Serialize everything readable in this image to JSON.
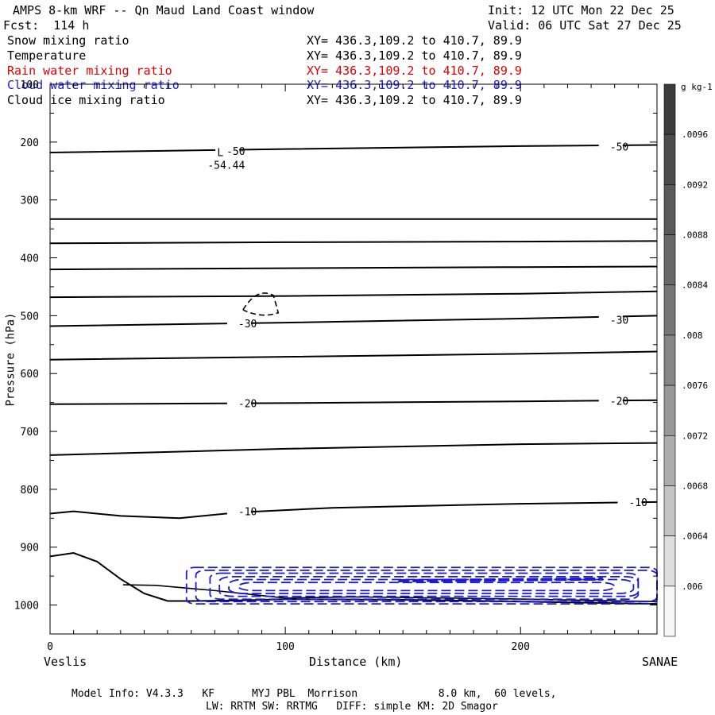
{
  "header": {
    "title": "AMPS 8-km WRF -- Qn Maud Land Coast window",
    "forecast": "Fcst:  114 h",
    "init": "Init: 12 UTC Mon 22 Dec 25",
    "valid": "Valid: 06 UTC Sat 27 Dec 25"
  },
  "fields": [
    {
      "name": "Snow mixing ratio",
      "xy": "XY= 436.3,109.2 to 410.7, 89.9",
      "color": "#000000"
    },
    {
      "name": "Temperature",
      "xy": "XY= 436.3,109.2 to 410.7, 89.9",
      "color": "#000000"
    },
    {
      "name": "Rain water mixing ratio",
      "xy": "XY= 436.3,109.2 to 410.7, 89.9",
      "color": "#e00000"
    },
    {
      "name": "Cloud water mixing ratio",
      "xy": "XY= 436.3,109.2 to 410.7, 89.9",
      "color": "#1a1ad8"
    },
    {
      "name": "Cloud ice mixing ratio",
      "xy": "XY= 436.3,109.2 to 410.7, 89.9",
      "color": "#000000"
    }
  ],
  "chart_data": {
    "type": "cross-section contour",
    "xlabel": "Distance (km)",
    "ylabel": "Pressure (hPa)",
    "xlim": [
      0,
      258
    ],
    "ylim": [
      1050,
      100
    ],
    "xticks": [
      0,
      100,
      200
    ],
    "yticks": [
      100,
      200,
      300,
      400,
      500,
      600,
      700,
      800,
      900,
      1000
    ],
    "endpoints": {
      "left": "Veslis",
      "right": "SANAE"
    },
    "temperature_contours": [
      {
        "x": [
          0,
          100,
          200,
          258
        ],
        "p": [
          218,
          212,
          207,
          205
        ]
      },
      {
        "x": [
          0,
          258
        ],
        "p": [
          333,
          333
        ]
      },
      {
        "x": [
          0,
          100,
          200,
          258
        ],
        "p": [
          375,
          373,
          372,
          371
        ]
      },
      {
        "x": [
          0,
          100,
          200,
          258
        ],
        "p": [
          420,
          418,
          416,
          415
        ]
      },
      {
        "x": [
          0,
          100,
          200,
          258
        ],
        "p": [
          468,
          466,
          462,
          458
        ]
      },
      {
        "x": [
          0,
          100,
          200,
          258
        ],
        "p": [
          518,
          512,
          505,
          500
        ]
      },
      {
        "x": [
          0,
          100,
          200,
          258
        ],
        "p": [
          576,
          571,
          566,
          562
        ]
      },
      {
        "x": [
          0,
          100,
          200,
          258
        ],
        "p": [
          653,
          651,
          648,
          646
        ]
      },
      {
        "x": [
          0,
          100,
          200,
          258
        ],
        "p": [
          741,
          730,
          722,
          720
        ]
      },
      {
        "x": [
          0,
          10,
          30,
          55,
          80,
          120,
          200,
          258
        ],
        "p": [
          842,
          838,
          846,
          850,
          840,
          832,
          825,
          822
        ]
      }
    ],
    "contour_labels": [
      {
        "text": "-50",
        "x": 75,
        "p": 215
      },
      {
        "text": "-50",
        "x": 238,
        "p": 208
      },
      {
        "text": "-30",
        "x": 80,
        "p": 513
      },
      {
        "text": "-30",
        "x": 238,
        "p": 507
      },
      {
        "text": "-20",
        "x": 80,
        "p": 651
      },
      {
        "text": "-20",
        "x": 238,
        "p": 647
      },
      {
        "text": "-10",
        "x": 80,
        "p": 838
      },
      {
        "text": "-10",
        "x": 246,
        "p": 822
      }
    ],
    "low_marker": {
      "letter": "L",
      "value": "-54.44",
      "x": 69,
      "p": 260
    },
    "terrain": {
      "x": [
        0,
        10,
        20,
        30,
        40,
        50,
        60,
        80,
        100,
        150,
        200,
        258
      ],
      "p": [
        916,
        910,
        925,
        955,
        980,
        993,
        993,
        992,
        990,
        991,
        994,
        998
      ]
    },
    "cloud_water": {
      "x_start": 58,
      "x_end": 258,
      "p_top": 935,
      "p_bottom": 1000,
      "color": "#1a1ad8"
    },
    "colorbar": {
      "unit": "g kg-1",
      "labels": [
        ".0096",
        ".0092",
        ".0088",
        ".0084",
        ".008",
        ".0076",
        ".0072",
        ".0068",
        ".0064",
        ".006"
      ],
      "colors": [
        "#3c3c3c",
        "#4c4c4c",
        "#5a5a5a",
        "#686868",
        "#767676",
        "#868686",
        "#989898",
        "#acacac",
        "#c4c4c4",
        "#dedede",
        "#f6f6f6"
      ]
    }
  },
  "footer": {
    "line1": "Model Info: V4.3.3   KF      MYJ PBL  Morrison             8.0 km,  60 levels,",
    "line2": "LW: RRTM SW: RRTMG   DIFF: simple KM: 2D Smagor"
  }
}
